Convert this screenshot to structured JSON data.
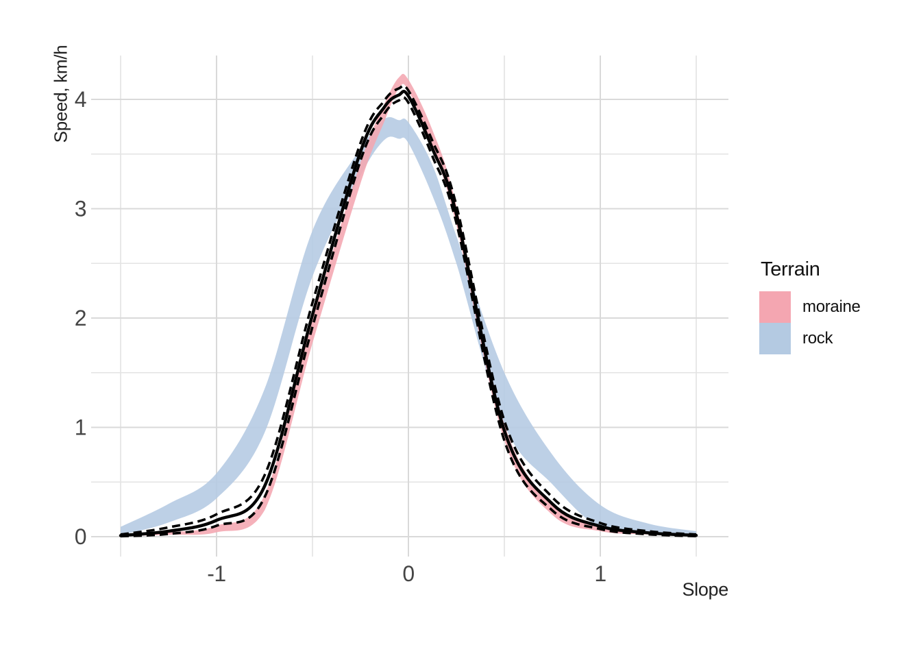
{
  "chart_data": {
    "type": "line",
    "title": "",
    "xlabel": "Slope",
    "ylabel": "Speed, km/h",
    "x_ticks": [
      -1,
      0,
      1
    ],
    "x_tick_labels": [
      "-1",
      "0",
      "1"
    ],
    "y_ticks": [
      0,
      1,
      2,
      3,
      4
    ],
    "y_tick_labels": [
      "0",
      "1",
      "2",
      "3",
      "4"
    ],
    "x_minor_ticks": [
      -1.5,
      -0.5,
      0.5,
      1.5
    ],
    "y_minor_ticks": [
      0.5,
      1.5,
      2.5,
      3.5
    ],
    "xlim": [
      -1.66,
      1.67
    ],
    "ylim": [
      -0.18,
      4.4
    ],
    "grid": true,
    "x": [
      -1.5,
      -1.25,
      -1.0,
      -0.75,
      -0.5,
      -0.25,
      -0.125,
      -0.05,
      0.0,
      0.125,
      0.25,
      0.5,
      0.75,
      1.0,
      1.25,
      1.5
    ],
    "series": [
      {
        "name": "rock-interval",
        "terrain": "rock",
        "kind": "ribbon",
        "color": "#B4CAE2",
        "upper": [
          0.09,
          0.3,
          0.58,
          1.35,
          2.8,
          3.55,
          3.82,
          3.81,
          3.79,
          3.4,
          2.75,
          1.5,
          0.75,
          0.29,
          0.12,
          0.05
        ],
        "lower": [
          0.015,
          0.13,
          0.35,
          0.95,
          2.38,
          3.3,
          3.63,
          3.64,
          3.6,
          3.12,
          2.5,
          1.02,
          0.48,
          0.08,
          0.03,
          0.01
        ]
      },
      {
        "name": "moraine-interval",
        "terrain": "moraine",
        "kind": "ribbon",
        "color": "#F4A6B1",
        "upper": [
          0.015,
          0.04,
          0.1,
          0.38,
          1.98,
          3.42,
          3.96,
          4.2,
          4.18,
          3.72,
          3.03,
          1.03,
          0.3,
          0.09,
          0.04,
          0.015
        ],
        "lower": [
          0.005,
          0.018,
          0.04,
          0.24,
          1.77,
          3.23,
          3.8,
          4.1,
          4.08,
          3.56,
          2.85,
          0.88,
          0.2,
          0.05,
          0.02,
          0.005
        ]
      },
      {
        "name": "estimate-ci-upper",
        "kind": "dashed",
        "color": "#000000",
        "values": [
          0.02,
          0.085,
          0.205,
          0.56,
          2.14,
          3.6,
          3.99,
          4.1,
          4.08,
          3.62,
          3.03,
          1.06,
          0.36,
          0.125,
          0.05,
          0.02
        ]
      },
      {
        "name": "estimate-ci-lower",
        "kind": "dashed",
        "color": "#000000",
        "values": [
          0.004,
          0.025,
          0.1,
          0.36,
          1.92,
          3.44,
          3.87,
          3.99,
          3.97,
          3.48,
          2.87,
          0.88,
          0.24,
          0.07,
          0.022,
          0.005
        ]
      },
      {
        "name": "estimate",
        "kind": "solid",
        "color": "#000000",
        "values": [
          0.01,
          0.05,
          0.15,
          0.46,
          2.03,
          3.52,
          3.93,
          4.04,
          4.03,
          3.55,
          2.95,
          0.97,
          0.3,
          0.095,
          0.035,
          0.012
        ]
      }
    ],
    "legend": {
      "title": "Terrain",
      "position": "right",
      "entries": [
        {
          "label": "moraine",
          "color": "#F4A6B1"
        },
        {
          "label": "rock",
          "color": "#B4CAE2"
        }
      ]
    },
    "style": {
      "grid_major_color": "#D9D9D9",
      "grid_minor_color": "#E3E3E3",
      "tick_label_color": "#454545",
      "axis_title_color": "#222222",
      "ribbon_opacity": 0.88
    }
  }
}
